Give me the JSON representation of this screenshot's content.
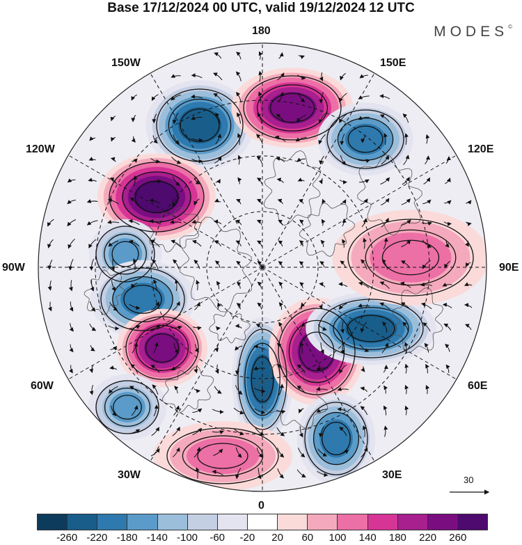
{
  "title": "Base 17/12/2024 00 UTC, valid 19/12/2024 12 UTC",
  "brand": "MODES",
  "brand_mark": "©",
  "longitude_labels": {
    "lon_180": "180",
    "lon_150e": "150E",
    "lon_120e": "120E",
    "lon_90e": "90E",
    "lon_60e": "60E",
    "lon_30e": "30E",
    "lon_0": "0",
    "lon_30w": "30W",
    "lon_60w": "60W",
    "lon_90w": "90W",
    "lon_120w": "120W",
    "lon_150w": "150W"
  },
  "colorbar": {
    "ticks": [
      "-260",
      "-220",
      "-180",
      "-140",
      "-100",
      "-60",
      "-20",
      "20",
      "60",
      "100",
      "140",
      "180",
      "220",
      "260"
    ],
    "colors": [
      "#0d3b5c",
      "#195d8a",
      "#2e79ad",
      "#5a9bc9",
      "#9bbedb",
      "#c5cfe3",
      "#e4e4f0",
      "#ffffff",
      "#fbdada",
      "#f4aabc",
      "#ec6fa5",
      "#d63596",
      "#a81f8e",
      "#7a0e80",
      "#4e0a6e"
    ]
  },
  "reference_vector": {
    "label": "30"
  },
  "anomalies": [
    {
      "name": "neg-center-150w",
      "value": -220
    },
    {
      "name": "pos-center-170e",
      "value": 220
    },
    {
      "name": "neg-center-140e",
      "value": -180
    },
    {
      "name": "pos-center-125w",
      "value": 260
    },
    {
      "name": "neg-center-95w",
      "value": -140
    },
    {
      "name": "neg-center-80w",
      "value": -180
    },
    {
      "name": "pos-center-65w",
      "value": 220
    },
    {
      "name": "neg-center-45w",
      "value": -140
    },
    {
      "name": "neg-center-10e",
      "value": -220
    },
    {
      "name": "pos-center-30e",
      "value": 220
    },
    {
      "name": "neg-center-60e",
      "value": -220
    },
    {
      "name": "pos-center-95e",
      "value": 100
    },
    {
      "name": "neg-center-30e-south",
      "value": -180
    },
    {
      "name": "pos-center-10w",
      "value": 100
    }
  ]
}
